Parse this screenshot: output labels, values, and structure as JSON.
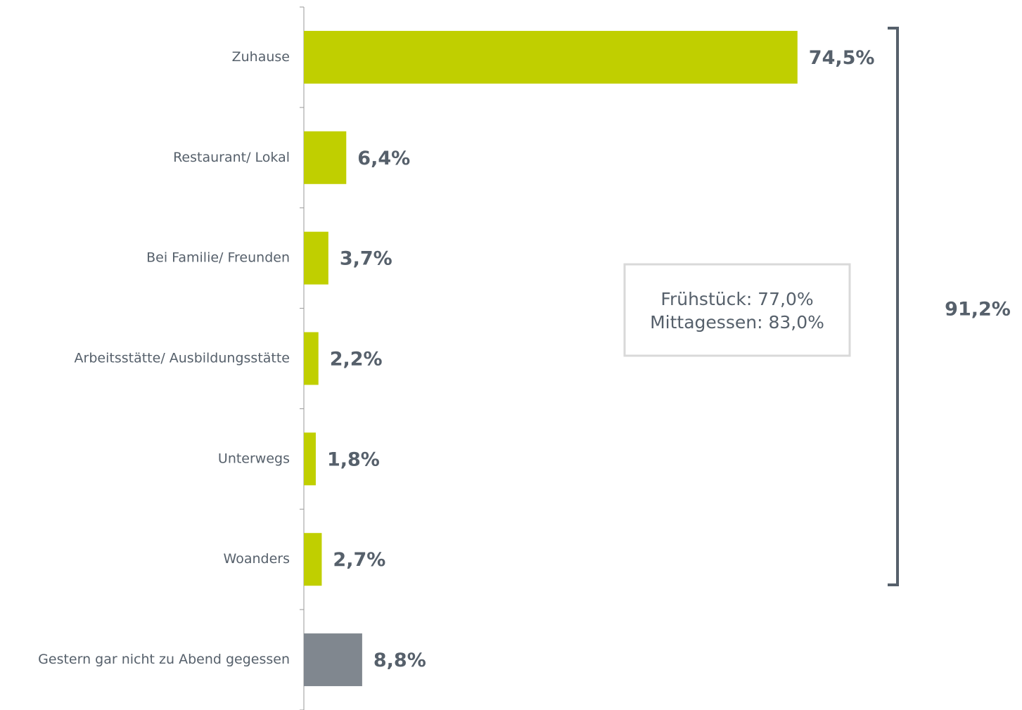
{
  "chart_data": {
    "type": "bar",
    "orientation": "horizontal",
    "categories": [
      "Zuhause",
      "Restaurant/ Lokal",
      "Bei Familie/ Freunden",
      "Arbeitsstätte/ Ausbildungsstätte",
      "Unterwegs",
      "Woanders",
      "Gestern gar nicht zu Abend gegessen"
    ],
    "values": [
      74.5,
      6.4,
      3.7,
      2.2,
      1.8,
      2.7,
      8.8
    ],
    "value_labels": [
      "74,5%",
      "6,4%",
      "3,7%",
      "2,2%",
      "1,8%",
      "2,7%",
      "8,8%"
    ],
    "colors": [
      "#c0cf00",
      "#c0cf00",
      "#c0cf00",
      "#c0cf00",
      "#c0cf00",
      "#c0cf00",
      "#80878f"
    ],
    "xlim": [
      0,
      100
    ],
    "note": [
      "Frühstück: 77,0%",
      "Mittagessen: 83,0%"
    ],
    "bracket_label": "91,2%"
  }
}
